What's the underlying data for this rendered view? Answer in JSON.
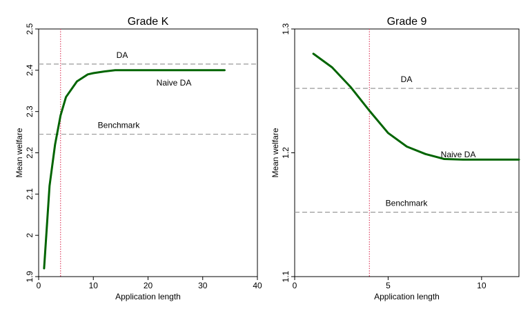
{
  "chart_data": [
    {
      "type": "line",
      "title": "Grade K",
      "xlabel": "Application length",
      "ylabel": "Mean welfare",
      "xlim": [
        0,
        40
      ],
      "ylim": [
        1.9,
        2.5
      ],
      "x_ticks": [
        "0",
        "10",
        "20",
        "30",
        "40"
      ],
      "y_ticks": [
        "1.9",
        "2",
        "2.1",
        "2.2",
        "2.3",
        "2.4",
        "2.5"
      ],
      "grid": false,
      "series": [
        {
          "name": "Naive DA",
          "color": "#006400",
          "x": [
            1,
            2,
            3,
            4,
            5,
            7,
            9,
            10,
            12,
            14,
            16,
            18,
            20,
            25,
            30,
            34
          ],
          "y": [
            1.92,
            2.12,
            2.22,
            2.29,
            2.335,
            2.373,
            2.39,
            2.393,
            2.397,
            2.4,
            2.4,
            2.4,
            2.4,
            2.4,
            2.4,
            2.4
          ]
        }
      ],
      "reference_lines": [
        {
          "label": "DA",
          "value": 2.415,
          "color": "#999999"
        },
        {
          "label": "Benchmark",
          "value": 2.245,
          "color": "#999999"
        }
      ],
      "vline": {
        "value": 4,
        "color": "#e0506e"
      }
    },
    {
      "type": "line",
      "title": "Grade 9",
      "xlabel": "Application length",
      "ylabel": "Mean welfare",
      "xlim": [
        0,
        12
      ],
      "ylim": [
        1.1,
        1.3
      ],
      "x_ticks": [
        "0",
        "5",
        "10"
      ],
      "y_ticks": [
        "1.1",
        "1.2",
        "1.3"
      ],
      "grid": false,
      "series": [
        {
          "name": "Naive DA",
          "color": "#006400",
          "x": [
            1,
            2,
            3,
            4,
            5,
            6,
            7,
            8,
            9,
            10,
            11,
            12
          ],
          "y": [
            1.28,
            1.269,
            1.253,
            1.234,
            1.216,
            1.205,
            1.199,
            1.195,
            1.1945,
            1.1945,
            1.1945,
            1.1945
          ]
        }
      ],
      "reference_lines": [
        {
          "label": "DA",
          "value": 1.252,
          "color": "#999999"
        },
        {
          "label": "Benchmark",
          "value": 1.152,
          "color": "#999999"
        }
      ],
      "vline": {
        "value": 4,
        "color": "#e0506e"
      }
    }
  ]
}
